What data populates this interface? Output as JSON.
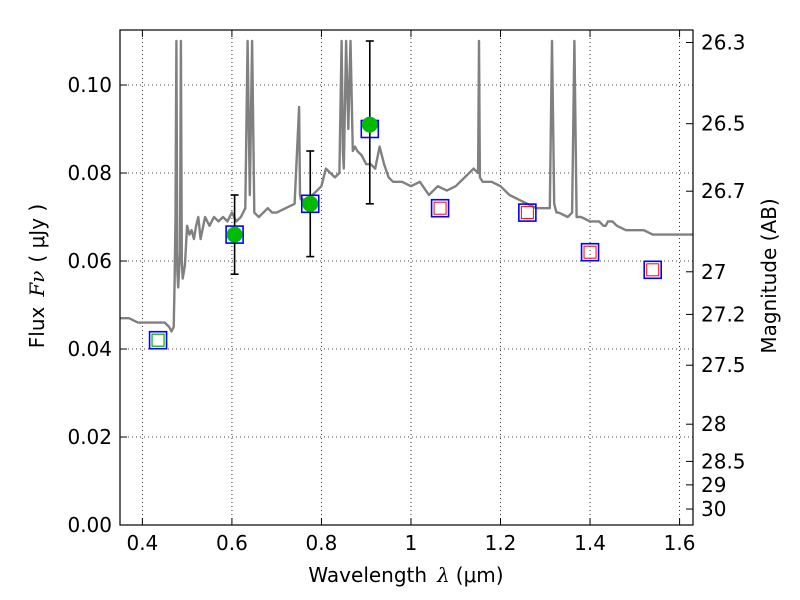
{
  "chart_data": {
    "type": "line",
    "title": "",
    "xlabel": "Wavelength",
    "xlabel_symbol": "λ",
    "xlabel_unit": "(μm)",
    "ylabel": "Flux",
    "ylabel_symbol": "Fν",
    "ylabel_unit": "( μJy )",
    "y2label": "Magnitude (AB)",
    "xlim": [
      0.35,
      1.63
    ],
    "ylim": [
      0.0,
      0.1125
    ],
    "grid": true,
    "x_ticks": [
      0.4,
      0.6,
      0.8,
      1.0,
      1.2,
      1.4,
      1.6
    ],
    "x_tick_labels": [
      "0.4",
      "0.6",
      "0.8",
      "1",
      "1.2",
      "1.4",
      "1.6"
    ],
    "y_ticks": [
      0.0,
      0.02,
      0.04,
      0.06,
      0.08,
      0.1
    ],
    "y_tick_labels": [
      "0.00",
      "0.02",
      "0.04",
      "0.06",
      "0.08",
      "0.10"
    ],
    "y2_ticks": [
      26.3,
      26.5,
      26.7,
      27,
      27.2,
      27.5,
      28,
      28.5,
      29,
      30
    ],
    "y2_tick_labels": [
      "26.3",
      "26.5",
      "26.7",
      "27",
      "27.2",
      "27.5",
      "28",
      "28.5",
      "29",
      "30"
    ],
    "colors": {
      "spectrum": "#808080",
      "observed": "#00bb00",
      "model_box": "#0000ff",
      "nir_box": "#ff0000",
      "uv_box": "#00aa00",
      "errorbar": "#000000"
    },
    "series": [
      {
        "kind": "spectrum",
        "x": [
          0.35,
          0.37,
          0.39,
          0.41,
          0.43,
          0.45,
          0.46,
          0.465,
          0.47,
          0.472,
          0.474,
          0.476,
          0.478,
          0.48,
          0.484,
          0.486,
          0.488,
          0.49,
          0.495,
          0.5,
          0.505,
          0.51,
          0.515,
          0.52,
          0.525,
          0.53,
          0.54,
          0.55,
          0.56,
          0.57,
          0.58,
          0.59,
          0.6,
          0.61,
          0.62,
          0.63,
          0.635,
          0.64,
          0.645,
          0.65,
          0.66,
          0.67,
          0.68,
          0.69,
          0.7,
          0.72,
          0.74,
          0.75,
          0.752,
          0.754,
          0.76,
          0.77,
          0.78,
          0.79,
          0.8,
          0.81,
          0.82,
          0.83,
          0.84,
          0.845,
          0.848,
          0.85,
          0.855,
          0.86,
          0.865,
          0.87,
          0.875,
          0.88,
          0.89,
          0.9,
          0.91,
          0.92,
          0.93,
          0.94,
          0.95,
          0.96,
          0.98,
          1.0,
          1.02,
          1.04,
          1.06,
          1.08,
          1.1,
          1.12,
          1.14,
          1.15,
          1.152,
          1.154,
          1.16,
          1.18,
          1.2,
          1.22,
          1.24,
          1.26,
          1.28,
          1.3,
          1.31,
          1.315,
          1.32,
          1.325,
          1.33,
          1.35,
          1.36,
          1.365,
          1.37,
          1.38,
          1.4,
          1.42,
          1.43,
          1.435,
          1.44,
          1.45,
          1.46,
          1.48,
          1.5,
          1.52,
          1.54,
          1.56,
          1.58,
          1.6,
          1.63
        ],
        "y": [
          0.047,
          0.047,
          0.046,
          0.046,
          0.046,
          0.046,
          0.045,
          0.044,
          0.045,
          0.055,
          0.07,
          0.11,
          0.058,
          0.054,
          0.062,
          0.11,
          0.06,
          0.056,
          0.059,
          0.068,
          0.066,
          0.067,
          0.065,
          0.068,
          0.07,
          0.065,
          0.07,
          0.068,
          0.07,
          0.069,
          0.07,
          0.069,
          0.071,
          0.069,
          0.07,
          0.072,
          0.11,
          0.075,
          0.11,
          0.071,
          0.07,
          0.071,
          0.072,
          0.071,
          0.071,
          0.072,
          0.073,
          0.095,
          0.075,
          0.074,
          0.074,
          0.074,
          0.075,
          0.076,
          0.077,
          0.081,
          0.08,
          0.079,
          0.08,
          0.11,
          0.085,
          0.081,
          0.11,
          0.09,
          0.11,
          0.085,
          0.086,
          0.085,
          0.084,
          0.082,
          0.082,
          0.081,
          0.086,
          0.082,
          0.079,
          0.078,
          0.078,
          0.077,
          0.078,
          0.075,
          0.077,
          0.076,
          0.077,
          0.079,
          0.081,
          0.08,
          0.11,
          0.079,
          0.078,
          0.078,
          0.077,
          0.075,
          0.074,
          0.073,
          0.072,
          0.072,
          0.072,
          0.11,
          0.073,
          0.071,
          0.071,
          0.07,
          0.071,
          0.11,
          0.07,
          0.07,
          0.069,
          0.069,
          0.068,
          0.068,
          0.069,
          0.069,
          0.068,
          0.067,
          0.067,
          0.067,
          0.066,
          0.066,
          0.066,
          0.066,
          0.066
        ]
      },
      {
        "kind": "observed",
        "points": [
          {
            "x": 0.606,
            "y": 0.066,
            "yerr_low": 0.057,
            "yerr_high": 0.075
          },
          {
            "x": 0.775,
            "y": 0.073,
            "yerr_low": 0.061,
            "yerr_high": 0.085
          },
          {
            "x": 0.908,
            "y": 0.091,
            "yerr_low": 0.073,
            "yerr_high": 0.11
          }
        ]
      },
      {
        "kind": "model_boxes",
        "points": [
          {
            "x": 0.435,
            "y": 0.042,
            "inner": "uv"
          },
          {
            "x": 0.606,
            "y": 0.066,
            "inner": "none"
          },
          {
            "x": 0.775,
            "y": 0.073,
            "inner": "none"
          },
          {
            "x": 0.908,
            "y": 0.09,
            "inner": "none"
          },
          {
            "x": 1.065,
            "y": 0.072,
            "inner": "nir"
          },
          {
            "x": 1.26,
            "y": 0.071,
            "inner": "nir"
          },
          {
            "x": 1.4,
            "y": 0.062,
            "inner": "nir"
          },
          {
            "x": 1.54,
            "y": 0.058,
            "inner": "nir"
          }
        ]
      }
    ]
  }
}
